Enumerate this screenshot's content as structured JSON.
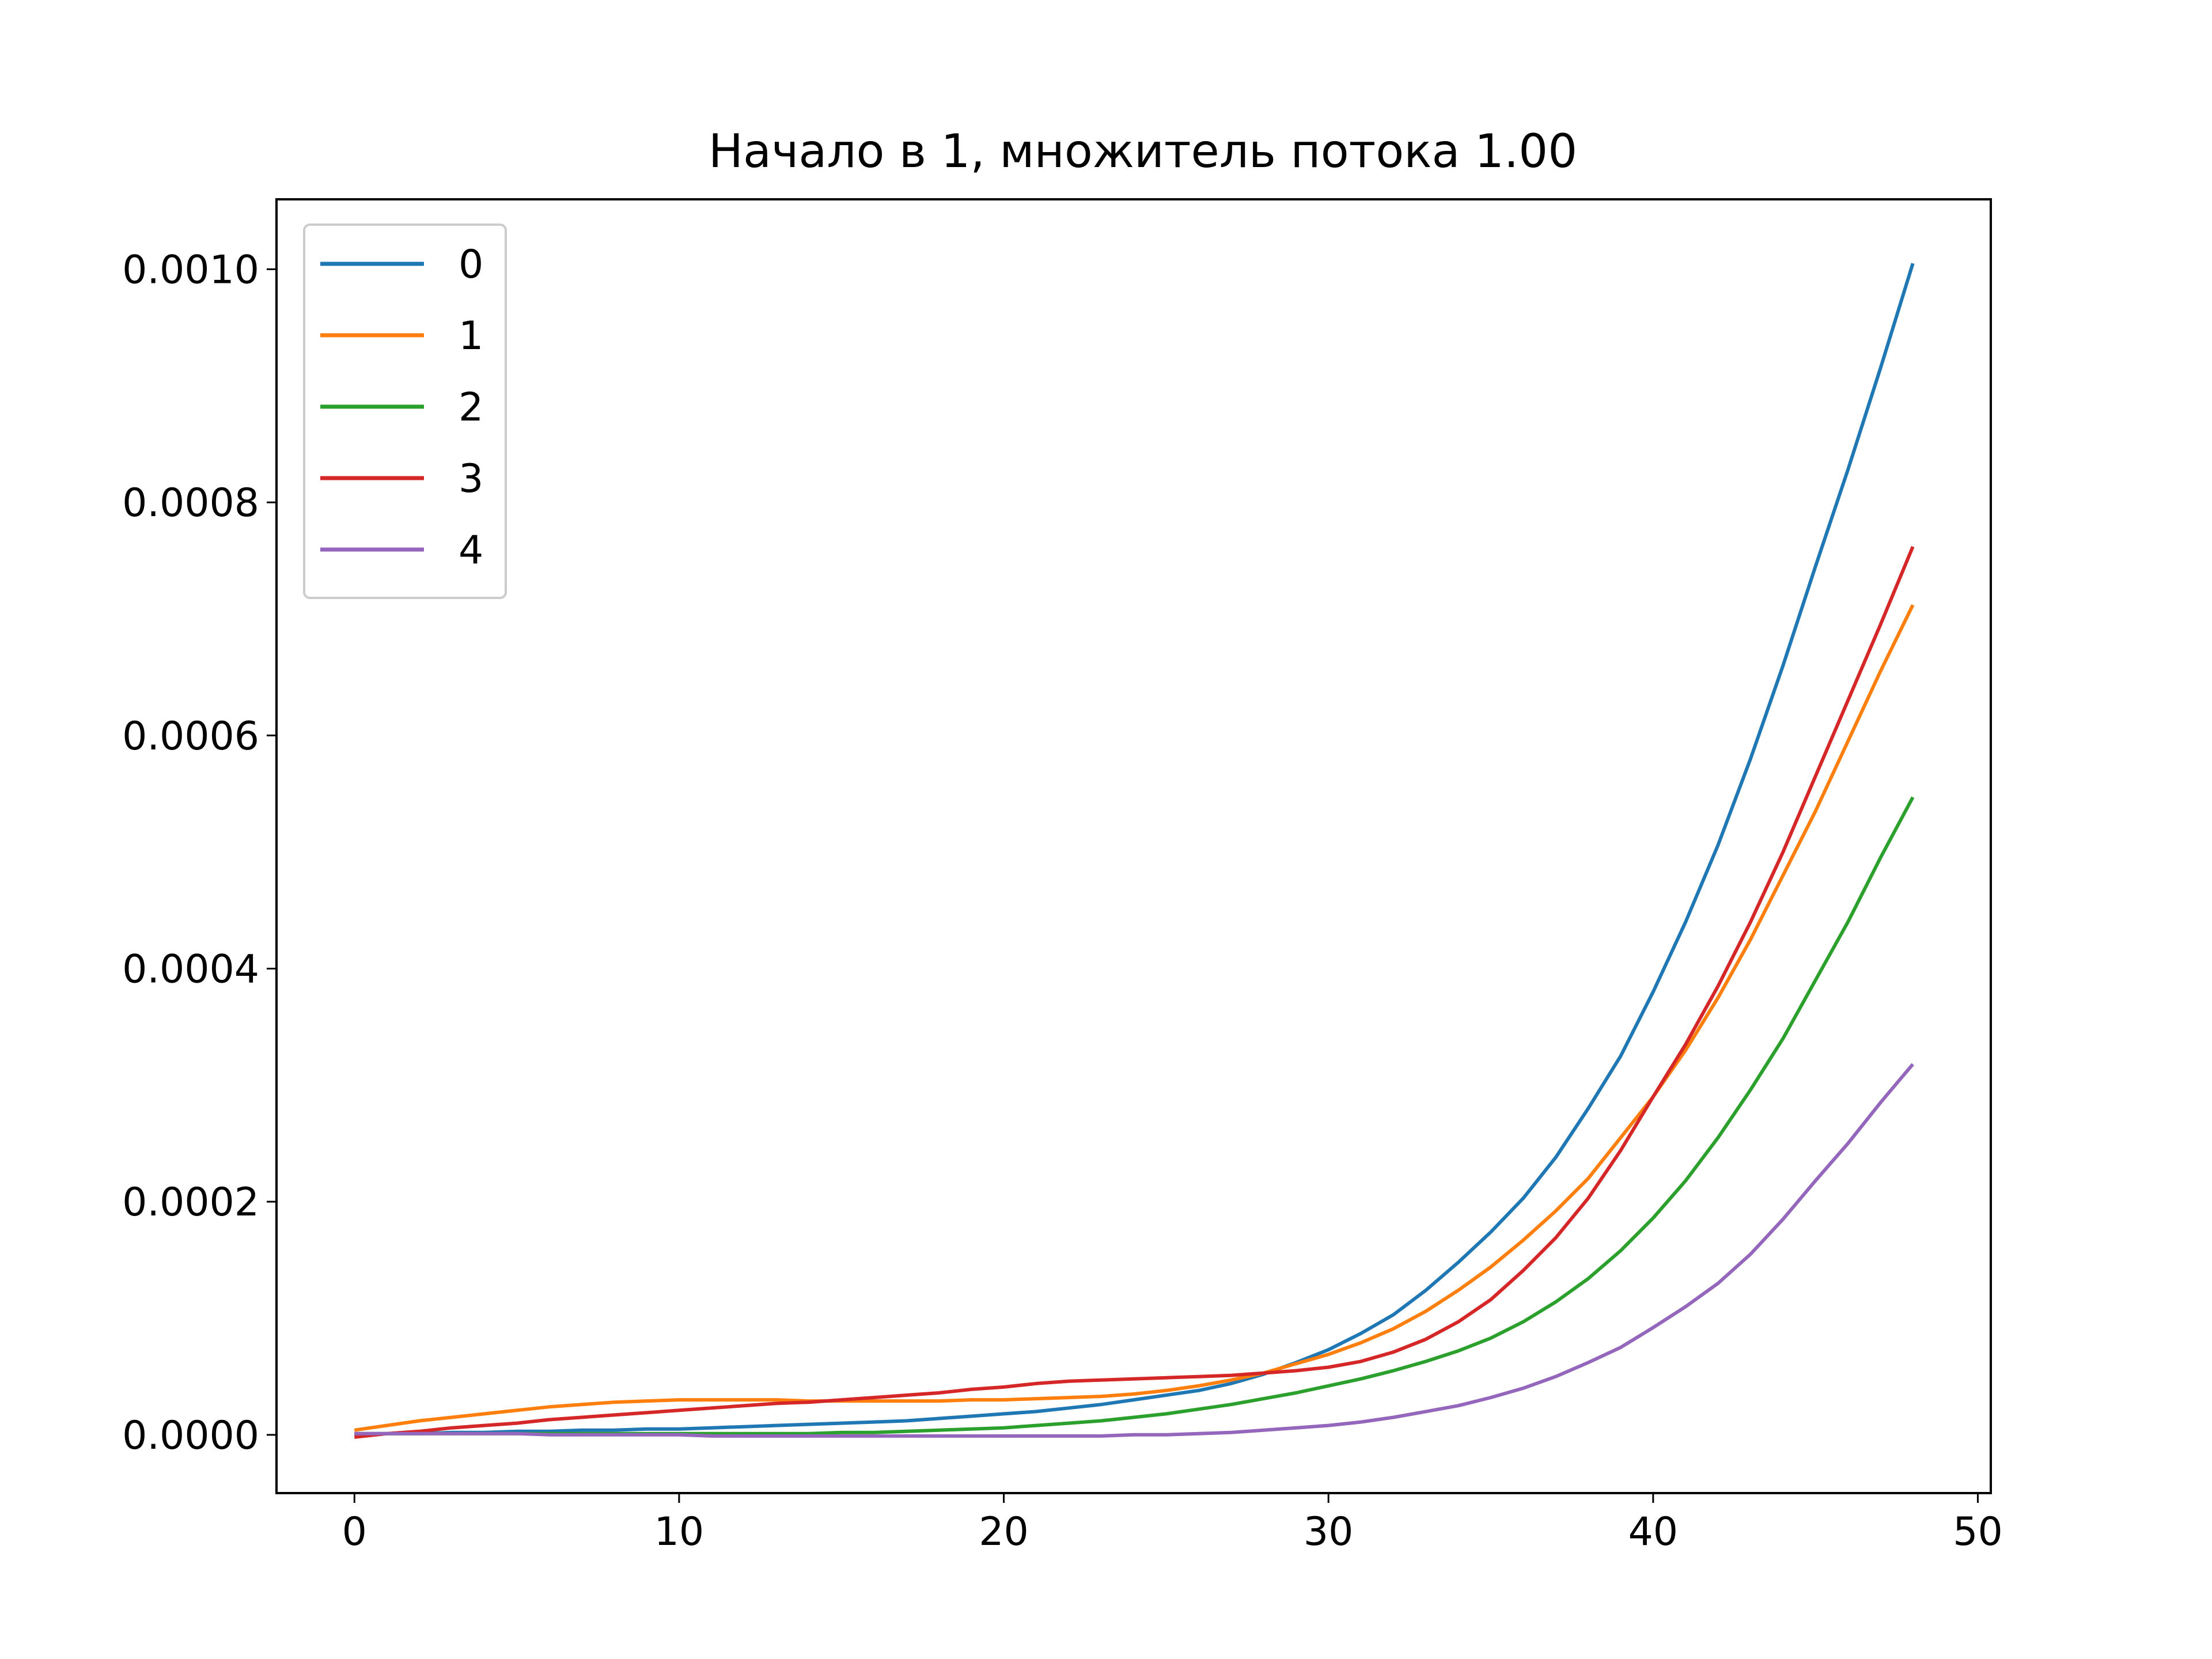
{
  "chart_data": {
    "type": "line",
    "title": "Начало в 1, множитель потока 1.00",
    "xlabel": "",
    "ylabel": "",
    "xlim": [
      -2.4,
      50.4
    ],
    "ylim": [
      -5e-05,
      0.00106
    ],
    "xticks": [
      0,
      10,
      20,
      30,
      40,
      50
    ],
    "xtick_labels": [
      "0",
      "10",
      "20",
      "30",
      "40",
      "50"
    ],
    "yticks": [
      0.0,
      0.0002,
      0.0004,
      0.0006,
      0.0008,
      0.001
    ],
    "ytick_labels": [
      "0.0000",
      "0.0002",
      "0.0004",
      "0.0006",
      "0.0008",
      "0.0010"
    ],
    "grid": false,
    "legend_position": "upper-left",
    "x": [
      0,
      1,
      2,
      3,
      4,
      5,
      6,
      7,
      8,
      9,
      10,
      11,
      12,
      13,
      14,
      15,
      16,
      17,
      18,
      19,
      20,
      21,
      22,
      23,
      24,
      25,
      26,
      27,
      28,
      29,
      30,
      31,
      32,
      33,
      34,
      35,
      36,
      37,
      38,
      39,
      40,
      41,
      42,
      43,
      44,
      45,
      46,
      47,
      48
    ],
    "series": [
      {
        "name": "0",
        "color": "#1f77b4",
        "values": [
          0.0,
          1e-06,
          1e-06,
          2e-06,
          2e-06,
          3e-06,
          3e-06,
          4e-06,
          4e-06,
          5e-06,
          5e-06,
          6e-06,
          7e-06,
          8e-06,
          9e-06,
          1e-05,
          1.1e-05,
          1.2e-05,
          1.4e-05,
          1.6e-05,
          1.8e-05,
          2e-05,
          2.3e-05,
          2.6e-05,
          3e-05,
          3.4e-05,
          3.8e-05,
          4.4e-05,
          5.2e-05,
          6.2e-05,
          7.3e-05,
          8.7e-05,
          0.000103,
          0.000124,
          0.000148,
          0.000174,
          0.000203,
          0.000238,
          0.00028,
          0.000325,
          0.00038,
          0.00044,
          0.000506,
          0.00058,
          0.00066,
          0.000745,
          0.000828,
          0.000915,
          0.001005
        ]
      },
      {
        "name": "1",
        "color": "#ff7f0e",
        "values": [
          4e-06,
          8e-06,
          1.2e-05,
          1.5e-05,
          1.8e-05,
          2.1e-05,
          2.4e-05,
          2.6e-05,
          2.8e-05,
          2.9e-05,
          3e-05,
          3e-05,
          3e-05,
          3e-05,
          2.9e-05,
          2.9e-05,
          2.9e-05,
          2.9e-05,
          2.9e-05,
          3e-05,
          3e-05,
          3.1e-05,
          3.2e-05,
          3.3e-05,
          3.5e-05,
          3.8e-05,
          4.2e-05,
          4.7e-05,
          5.3e-05,
          6.1e-05,
          6.9e-05,
          7.9e-05,
          9.1e-05,
          0.000106,
          0.000124,
          0.000144,
          0.000167,
          0.000192,
          0.00022,
          0.000255,
          0.00029,
          0.00033,
          0.000375,
          0.000425,
          0.00048,
          0.000535,
          0.000595,
          0.000655,
          0.000712
        ]
      },
      {
        "name": "2",
        "color": "#2ca02c",
        "values": [
          1e-06,
          1e-06,
          1e-06,
          1e-06,
          1e-06,
          1e-06,
          1e-06,
          1e-06,
          1e-06,
          1e-06,
          1e-06,
          1e-06,
          1e-06,
          1e-06,
          1e-06,
          2e-06,
          2e-06,
          3e-06,
          4e-06,
          5e-06,
          6e-06,
          8e-06,
          1e-05,
          1.2e-05,
          1.5e-05,
          1.8e-05,
          2.2e-05,
          2.6e-05,
          3.1e-05,
          3.6e-05,
          4.2e-05,
          4.8e-05,
          5.5e-05,
          6.3e-05,
          7.2e-05,
          8.3e-05,
          9.7e-05,
          0.000114,
          0.000134,
          0.000158,
          0.000186,
          0.000218,
          0.000255,
          0.000296,
          0.00034,
          0.00039,
          0.00044,
          0.000495,
          0.000547
        ]
      },
      {
        "name": "3",
        "color": "#d62728",
        "values": [
          -2e-06,
          1e-06,
          3e-06,
          6e-06,
          8e-06,
          1e-05,
          1.3e-05,
          1.5e-05,
          1.7e-05,
          1.9e-05,
          2.1e-05,
          2.3e-05,
          2.5e-05,
          2.7e-05,
          2.8e-05,
          3e-05,
          3.2e-05,
          3.4e-05,
          3.6e-05,
          3.9e-05,
          4.1e-05,
          4.4e-05,
          4.6e-05,
          4.7e-05,
          4.8e-05,
          4.9e-05,
          5e-05,
          5.1e-05,
          5.3e-05,
          5.5e-05,
          5.8e-05,
          6.3e-05,
          7.1e-05,
          8.2e-05,
          9.7e-05,
          0.000116,
          0.000141,
          0.000169,
          0.000203,
          0.000244,
          0.00029,
          0.000335,
          0.000385,
          0.00044,
          0.0005,
          0.000565,
          0.00063,
          0.000695,
          0.000762
        ]
      },
      {
        "name": "4",
        "color": "#9467bd",
        "values": [
          1e-06,
          1e-06,
          1e-06,
          1e-06,
          1e-06,
          1e-06,
          0.0,
          0.0,
          0.0,
          0.0,
          0.0,
          -1e-06,
          -1e-06,
          -1e-06,
          -1e-06,
          -1e-06,
          -1e-06,
          -1e-06,
          -1e-06,
          -1e-06,
          -1e-06,
          -1e-06,
          -1e-06,
          -1e-06,
          0.0,
          0.0,
          1e-06,
          2e-06,
          4e-06,
          6e-06,
          8e-06,
          1.1e-05,
          1.5e-05,
          2e-05,
          2.5e-05,
          3.2e-05,
          4e-05,
          5e-05,
          6.2e-05,
          7.5e-05,
          9.2e-05,
          0.00011,
          0.00013,
          0.000155,
          0.000185,
          0.000218,
          0.00025,
          0.000285,
          0.000318
        ]
      }
    ]
  }
}
